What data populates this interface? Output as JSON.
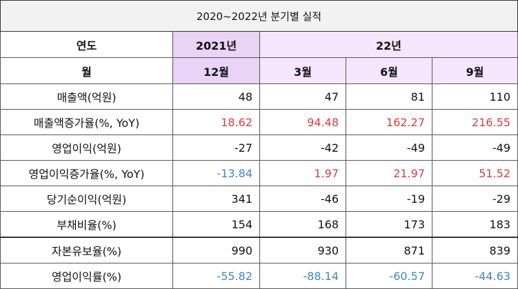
{
  "title": "2020~2022년 분기별 실적",
  "header": {
    "year_label": "연도",
    "year_2021": "2021년",
    "year_22": "22년",
    "month_label": "월",
    "months": [
      "12월",
      "3월",
      "6월",
      "9월"
    ]
  },
  "rows": [
    {
      "label": "매출액(억원)",
      "values": [
        "48",
        "47",
        "81",
        "110"
      ],
      "colors": [
        "black",
        "black",
        "black",
        "black"
      ]
    },
    {
      "label": "매출액증가율(%, YoY)",
      "values": [
        "18.62",
        "94.48",
        "162.27",
        "216.55"
      ],
      "colors": [
        "red",
        "red",
        "red",
        "red"
      ]
    },
    {
      "label": "영업이익(억원)",
      "values": [
        "-27",
        "-42",
        "-49",
        "-49"
      ],
      "colors": [
        "black",
        "black",
        "black",
        "black"
      ]
    },
    {
      "label": "영업이익증가율(%, YoY)",
      "values": [
        "-13.84",
        "1.97",
        "21.97",
        "51.52"
      ],
      "colors": [
        "blue",
        "red",
        "red",
        "red"
      ]
    },
    {
      "label": "당기순이익(억원)",
      "values": [
        "341",
        "-46",
        "-19",
        "-29"
      ],
      "colors": [
        "black",
        "black",
        "black",
        "black"
      ]
    },
    {
      "label": "부채비율(%)",
      "values": [
        "154",
        "168",
        "173",
        "183"
      ],
      "colors": [
        "black",
        "black",
        "black",
        "black"
      ]
    },
    {
      "label": "자본유보율(%)",
      "values": [
        "990",
        "930",
        "871",
        "839"
      ],
      "colors": [
        "black",
        "black",
        "black",
        "black"
      ]
    },
    {
      "label": "영업이익률(%)",
      "values": [
        "-55.82",
        "-88.14",
        "-60.57",
        "-44.63"
      ],
      "colors": [
        "blue",
        "blue",
        "blue",
        "blue"
      ]
    }
  ],
  "colors": {
    "header_pink": "#e9d3f7",
    "header_lavender": "#f6e6fd",
    "positive_red": "#e03b3b",
    "negative_blue": "#3d86c6"
  }
}
